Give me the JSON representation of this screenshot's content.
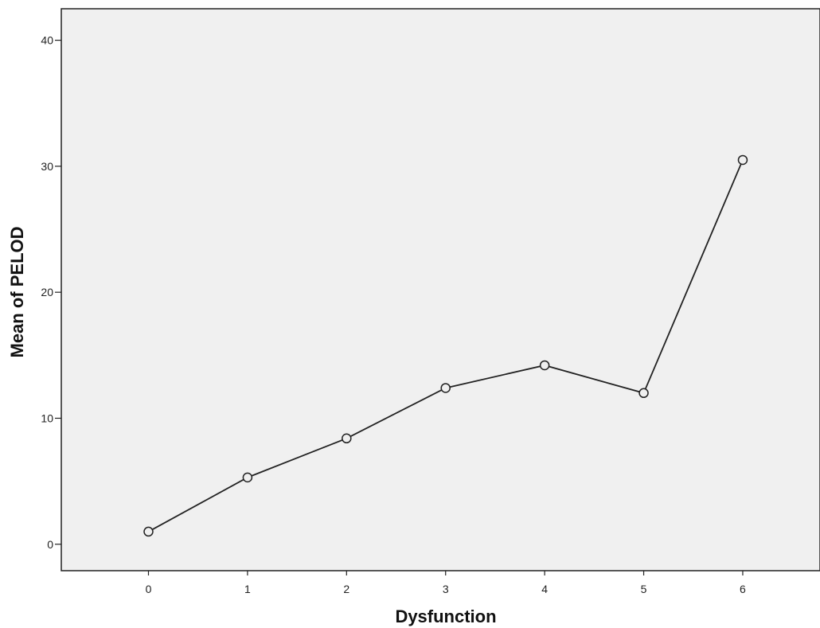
{
  "chart_data": {
    "type": "line",
    "title": "",
    "xlabel": "Dysfunction",
    "ylabel": "Mean of PELOD",
    "x": [
      0,
      1,
      2,
      3,
      4,
      5,
      6
    ],
    "series": [
      {
        "values": [
          1.0,
          5.3,
          8.4,
          12.4,
          14.2,
          12.0,
          30.5
        ]
      }
    ],
    "xticks": [
      "0",
      "1",
      "2",
      "3",
      "4",
      "5",
      "6"
    ],
    "yticks": [
      "0",
      "10",
      "20",
      "30",
      "40"
    ],
    "xlim": [
      -0.88,
      6.78
    ],
    "ylim": [
      -2.1,
      42.5
    ],
    "grid": false,
    "marker": "open-circle",
    "colors": {
      "plot_background": "#f0f0f0",
      "line": "#222222",
      "axis": "#222222"
    }
  }
}
